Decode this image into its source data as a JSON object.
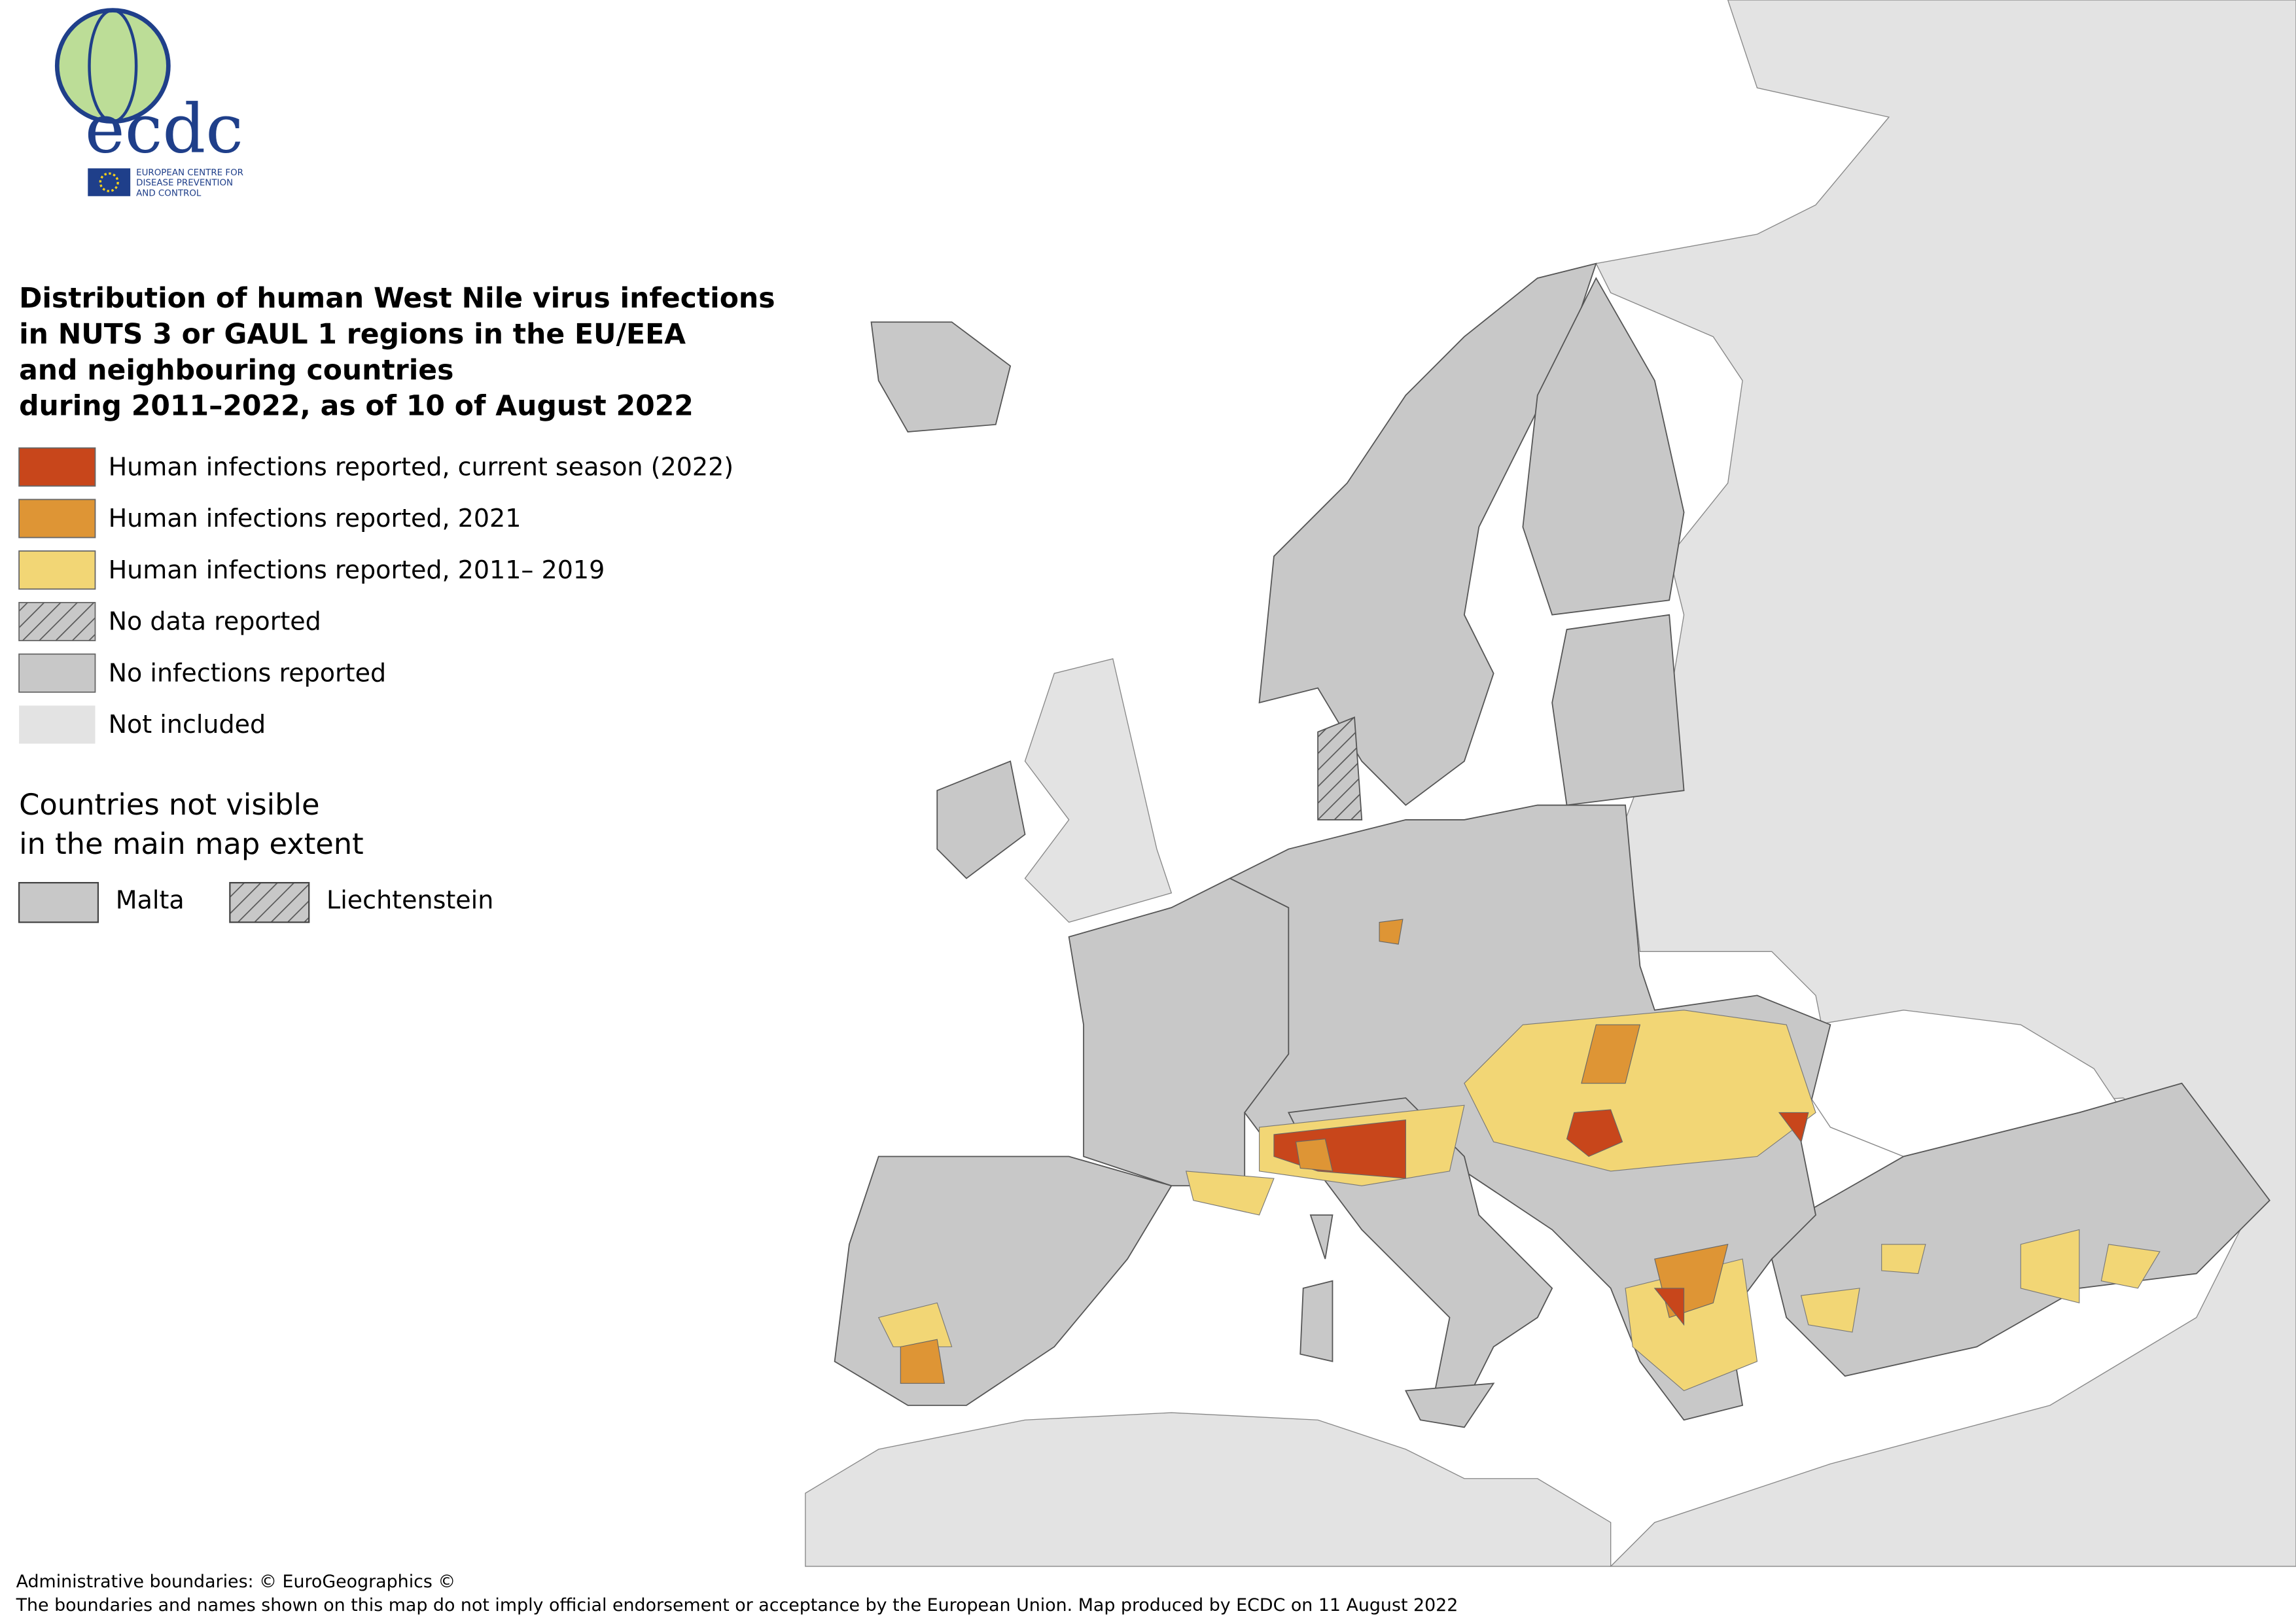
{
  "logo": {
    "wordmark": "ecdc",
    "agency_lines": [
      "EUROPEAN CENTRE FOR",
      "DISEASE PREVENTION",
      "AND CONTROL"
    ]
  },
  "title_lines": [
    "Distribution of human West Nile virus infections",
    "in NUTS 3 or GAUL 1 regions in the EU/EEA",
    "and neighbouring countries",
    "during 2011–2022, as of 10 of August 2022"
  ],
  "legend": [
    {
      "label": "Human infections reported, current season (2022)",
      "color": "#c8461b",
      "hatched": false
    },
    {
      "label": "Human infections reported, 2021",
      "color": "#de9535",
      "hatched": false
    },
    {
      "label": "Human infections reported, 2011– 2019",
      "color": "#f2d675",
      "hatched": false
    },
    {
      "label": "No data reported",
      "color": "#c8c8c8",
      "hatched": true
    },
    {
      "label": "No infections reported",
      "color": "#c8c8c8",
      "hatched": false
    },
    {
      "label": "Not included",
      "color": "#e3e3e3",
      "hatched": false
    }
  ],
  "not_visible": {
    "heading_lines": [
      "Countries not visible",
      "in the main map extent"
    ],
    "items": [
      {
        "label": "Malta",
        "hatched": false
      },
      {
        "label": "Liechtenstein",
        "hatched": true
      }
    ]
  },
  "footer": [
    "Administrative boundaries: © EuroGeographics ©",
    "The boundaries and names shown on this map do not imply official endorsement or acceptance by the European Union. Map produced by ECDC on 11 August 2022"
  ]
}
